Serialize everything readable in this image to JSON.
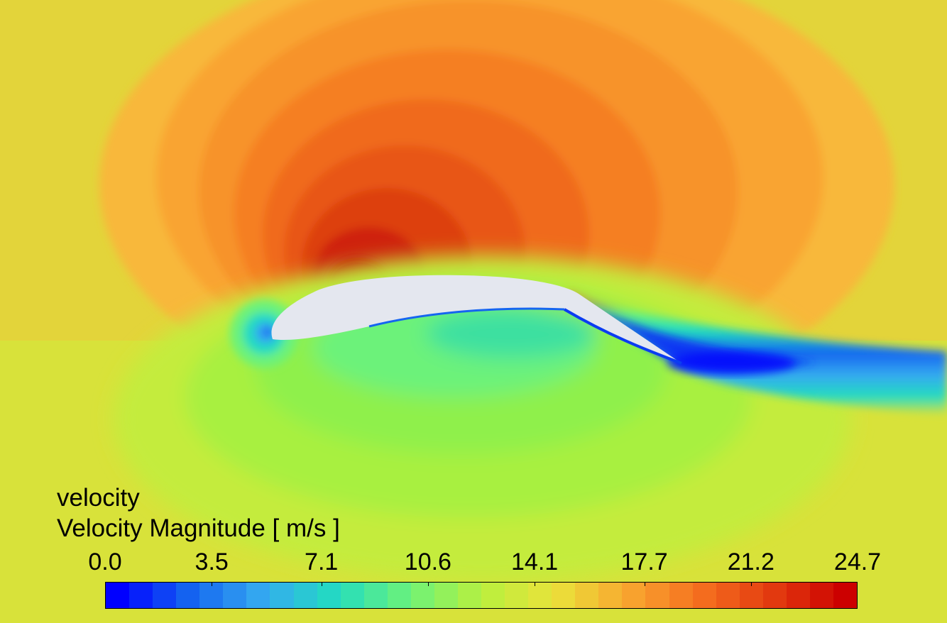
{
  "legend": {
    "title": "velocity",
    "subtitle": "Velocity Magnitude [ m/s ]",
    "min": 0.0,
    "max": 24.7,
    "ticks": [
      "0.0",
      "3.5",
      "7.1",
      "10.6",
      "14.1",
      "17.7",
      "21.2",
      "24.7"
    ],
    "levels": 32
  },
  "colors": {
    "colormap": [
      "#0000ff",
      "#1565f0",
      "#35aaf0",
      "#22dcc0",
      "#6cf27a",
      "#b8f03e",
      "#eae23a",
      "#f8a830",
      "#f56f1f",
      "#e33b0f",
      "#cc0000"
    ],
    "airfoil": "#e4e7ef",
    "freestream": "#d8e23a"
  }
}
